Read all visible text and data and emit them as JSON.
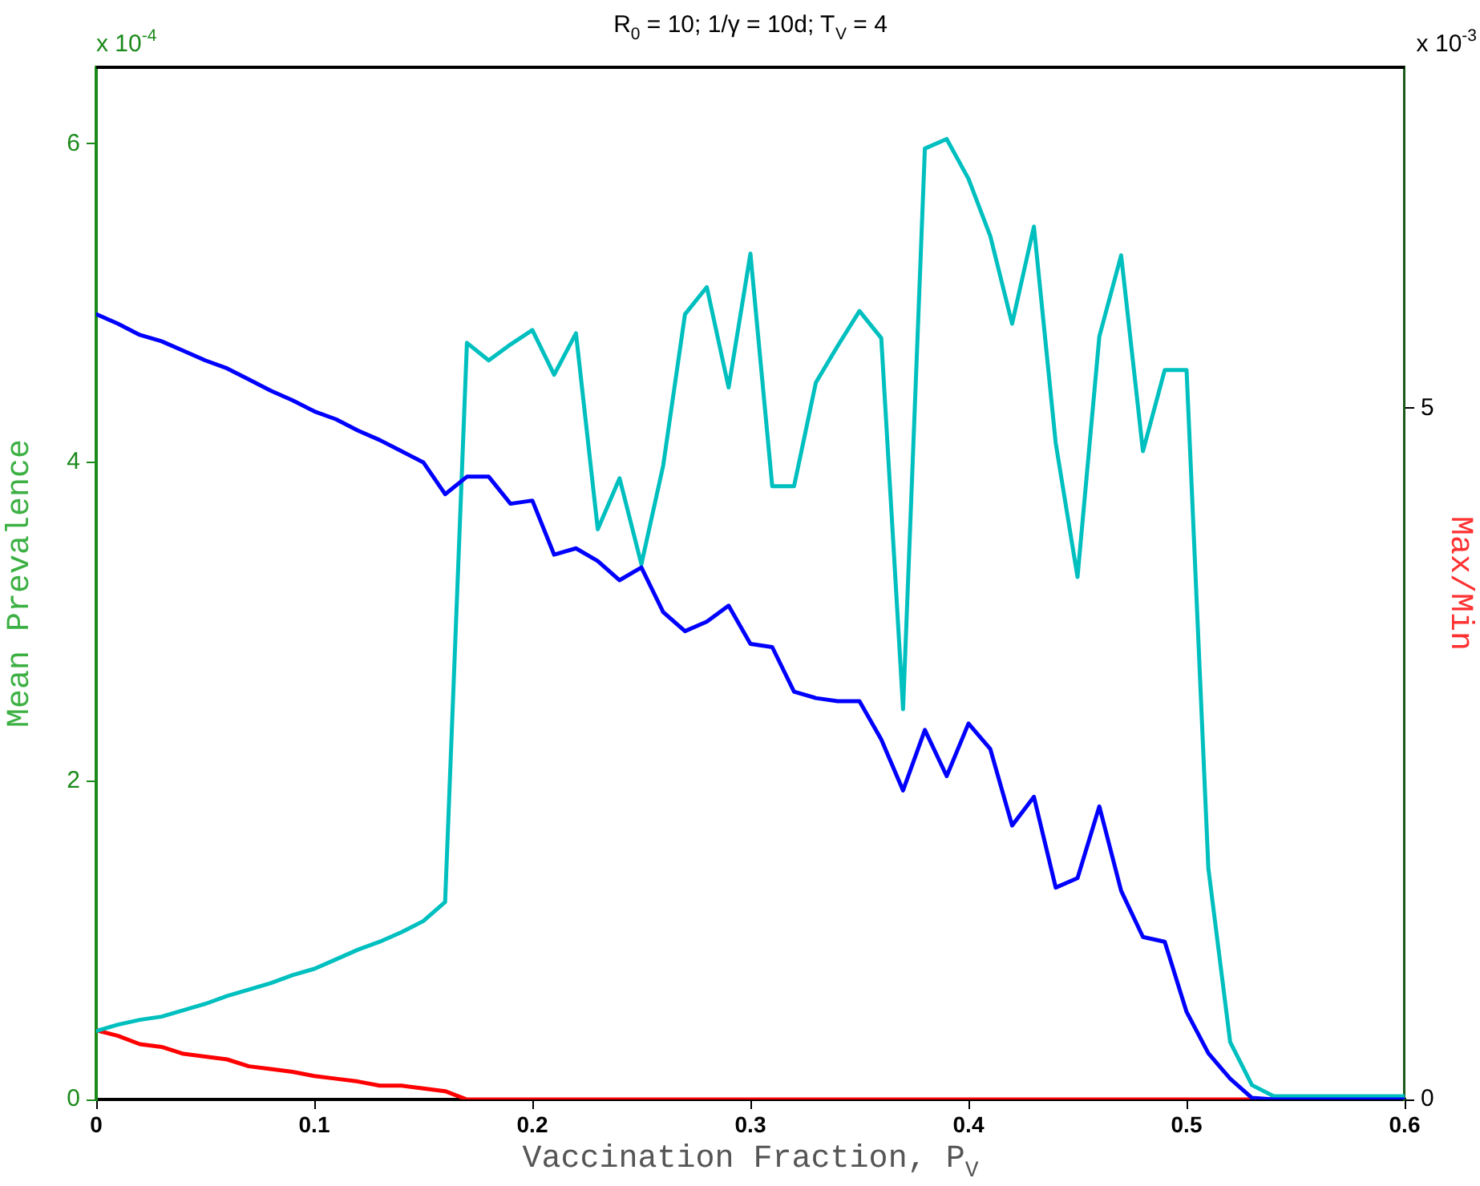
{
  "chart_data": {
    "type": "line",
    "title": "R$_{0}$ = 10; 1/γ = 10d; T$_{V}$ = 4",
    "xlabel": "Vaccination Fraction, P$_{V}$",
    "ylabel": "Mean Prevalence",
    "y2label": "Max/Min",
    "annotations": [
      "x 10$^{-4}$",
      "x 10$^{-3}$"
    ],
    "x": [
      0,
      0.01,
      0.02,
      0.03,
      0.04,
      0.05,
      0.06,
      0.07,
      0.08,
      0.09,
      0.1,
      0.11,
      0.12,
      0.13,
      0.14,
      0.15,
      0.16,
      0.17,
      0.18,
      0.19,
      0.2,
      0.21,
      0.22,
      0.23,
      0.24,
      0.25,
      0.26,
      0.27,
      0.28,
      0.29,
      0.3,
      0.31,
      0.32,
      0.33,
      0.34,
      0.35,
      0.36,
      0.37,
      0.38,
      0.39,
      0.4,
      0.41,
      0.42,
      0.43,
      0.44,
      0.45,
      0.46,
      0.47,
      0.48,
      0.49,
      0.5,
      0.51,
      0.52,
      0.53,
      0.54,
      0.55,
      0.56,
      0.57,
      0.58,
      0.59,
      0.6
    ],
    "series": [
      {
        "color": "#0000ff",
        "values": [
          4.93,
          4.87,
          4.8,
          4.76,
          4.7,
          4.64,
          4.59,
          4.52,
          4.45,
          4.39,
          4.32,
          4.27,
          4.2,
          4.14,
          4.07,
          4.0,
          3.8,
          3.91,
          3.91,
          3.74,
          3.76,
          3.42,
          3.46,
          3.38,
          3.26,
          3.34,
          3.06,
          2.94,
          3.0,
          3.1,
          2.86,
          2.84,
          2.56,
          2.52,
          2.5,
          2.5,
          2.26,
          1.94,
          2.32,
          2.03,
          2.36,
          2.2,
          1.72,
          1.9,
          1.33,
          1.39,
          1.84,
          1.31,
          1.02,
          0.99,
          0.55,
          0.29,
          0.13,
          0.01,
          0,
          0,
          0,
          0,
          0,
          0,
          0
        ]
      },
      {
        "color": "#00bfbf",
        "values": [
          0.43,
          0.47,
          0.5,
          0.52,
          0.56,
          0.6,
          0.65,
          0.69,
          0.73,
          0.78,
          0.82,
          0.88,
          0.94,
          0.99,
          1.05,
          1.12,
          1.24,
          4.75,
          4.64,
          4.74,
          4.83,
          4.55,
          4.81,
          3.58,
          3.9,
          3.36,
          3.98,
          4.93,
          5.1,
          4.47,
          5.31,
          3.85,
          3.85,
          4.5,
          4.73,
          4.95,
          4.78,
          2.45,
          5.97,
          6.03,
          5.78,
          5.42,
          4.87,
          5.48,
          4.12,
          3.28,
          4.79,
          5.3,
          4.07,
          4.58,
          4.58,
          1.45,
          0.36,
          0.09,
          0.02,
          0.02,
          0.02,
          0.02,
          0.02,
          0.02,
          0.02
        ]
      },
      {
        "color": "#ff0000",
        "axis": "y2",
        "values": [
          0.5,
          0.46,
          0.4,
          0.38,
          0.33,
          0.31,
          0.29,
          0.24,
          0.22,
          0.2,
          0.17,
          0.15,
          0.13,
          0.1,
          0.1,
          0.08,
          0.06,
          0,
          0,
          0,
          0,
          0,
          0,
          0,
          0,
          0,
          0,
          0,
          0,
          0,
          0,
          0,
          0,
          0,
          0,
          0,
          0,
          0,
          0,
          0,
          0,
          0,
          0,
          0,
          0,
          0,
          0,
          0,
          0,
          0,
          0,
          0,
          0,
          0,
          0,
          null,
          null,
          null,
          null,
          null,
          null
        ]
      }
    ],
    "xlim": [
      0,
      0.6
    ],
    "xticks": [
      0,
      0.1,
      0.2,
      0.3,
      0.4,
      0.5,
      0.6
    ],
    "ylim": [
      0,
      6.48
    ],
    "yticks": [
      0,
      2,
      4,
      6
    ],
    "y2lim": [
      0,
      7.47
    ],
    "y2ticks": [
      0,
      5
    ],
    "grid": false,
    "legend": false,
    "marker": "none",
    "line_style": "solid"
  }
}
